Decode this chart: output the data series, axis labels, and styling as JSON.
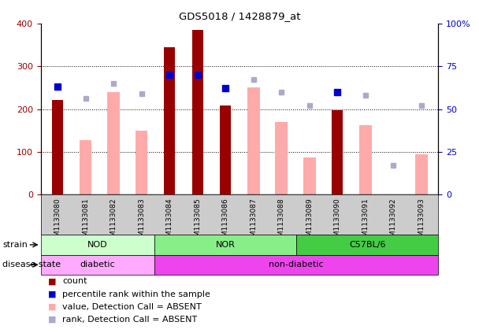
{
  "title": "GDS5018 / 1428879_at",
  "samples": [
    "GSM1133080",
    "GSM1133081",
    "GSM1133082",
    "GSM1133083",
    "GSM1133084",
    "GSM1133085",
    "GSM1133086",
    "GSM1133087",
    "GSM1133088",
    "GSM1133089",
    "GSM1133090",
    "GSM1133091",
    "GSM1133092",
    "GSM1133093"
  ],
  "count_values": [
    222,
    null,
    null,
    null,
    345,
    385,
    208,
    null,
    null,
    null,
    197,
    null,
    null,
    null
  ],
  "count_color": "#990000",
  "absent_value_values": [
    null,
    128,
    240,
    150,
    null,
    null,
    null,
    250,
    170,
    88,
    null,
    162,
    null,
    95
  ],
  "absent_value_color": "#ffaaaa",
  "percentile_rank_values": [
    63,
    null,
    null,
    null,
    70,
    70,
    62,
    null,
    null,
    null,
    60,
    null,
    null,
    null
  ],
  "percentile_rank_color": "#0000cc",
  "absent_rank_values": [
    null,
    56,
    65,
    59,
    null,
    null,
    null,
    67,
    60,
    52,
    null,
    58,
    17,
    52
  ],
  "absent_rank_color": "#aaaacc",
  "ylim_left": [
    0,
    400
  ],
  "ylim_right": [
    0,
    100
  ],
  "yticks_left": [
    0,
    100,
    200,
    300,
    400
  ],
  "yticks_right": [
    0,
    25,
    50,
    75,
    100
  ],
  "ytick_labels_right": [
    "0",
    "25",
    "50",
    "75",
    "100%"
  ],
  "grid_lines": [
    100,
    200,
    300
  ],
  "strain_groups": [
    {
      "label": "NOD",
      "start": 0,
      "end": 3,
      "color": "#ccffcc"
    },
    {
      "label": "NOR",
      "start": 4,
      "end": 8,
      "color": "#88ee88"
    },
    {
      "label": "C57BL/6",
      "start": 9,
      "end": 13,
      "color": "#44cc44"
    }
  ],
  "disease_groups": [
    {
      "label": "diabetic",
      "start": 0,
      "end": 3,
      "color": "#ffaaff"
    },
    {
      "label": "non-diabetic",
      "start": 4,
      "end": 13,
      "color": "#ee44ee"
    }
  ],
  "bar_width": 0.4,
  "absent_bar_width": 0.2,
  "xaxis_bg_color": "#cccccc"
}
